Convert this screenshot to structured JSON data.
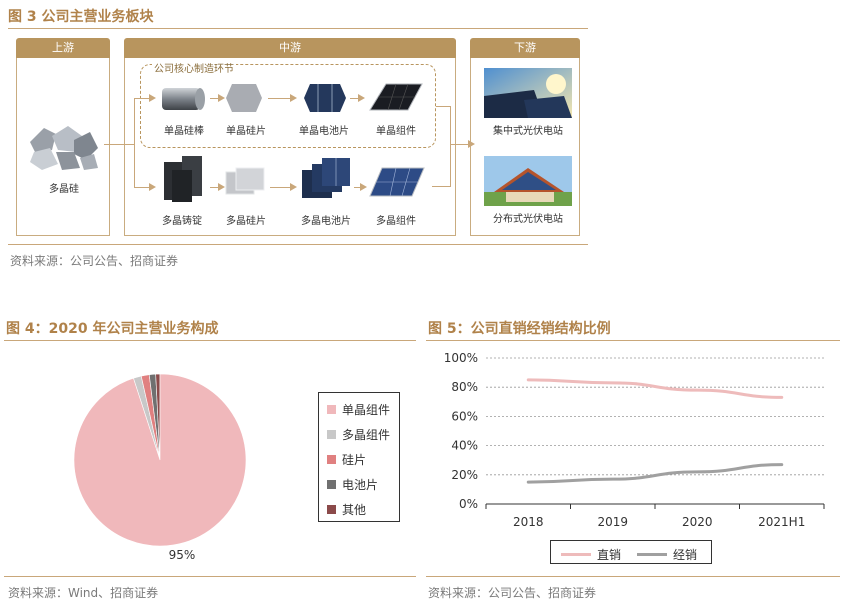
{
  "fig3": {
    "title": "图 3  公司主营业务板块",
    "upstream": "上游",
    "midstream": "中游",
    "downstream": "下游",
    "core_label": "公司核心制造环节",
    "raw": "多晶硅",
    "mono_steps": [
      "单晶硅棒",
      "单晶硅片",
      "单晶电池片",
      "单晶组件"
    ],
    "multi_steps": [
      "多晶铸锭",
      "多晶硅片",
      "多晶电池片",
      "多晶组件"
    ],
    "down_items": [
      "集中式光伏电站",
      "分布式光伏电站"
    ],
    "source": "资料来源：公司公告、招商证券"
  },
  "fig4": {
    "title": "图 4：2020 年公司主营业务构成",
    "source": "资料来源：Wind、招商证券"
  },
  "fig5": {
    "title": "图 5：公司直销经销结构比例",
    "source": "资料来源：公司公告、招商证券"
  },
  "chart_data": [
    {
      "type": "pie",
      "title": "2020 年公司主营业务构成",
      "categories": [
        "单晶组件",
        "多晶组件",
        "硅片",
        "电池片",
        "其他"
      ],
      "values": [
        95,
        1.5,
        1.5,
        1.2,
        0.8
      ],
      "colors": [
        "#f0b8bb",
        "#c8c8c8",
        "#e08080",
        "#707070",
        "#8b4a4a"
      ],
      "data_labels": [
        "95%"
      ],
      "legend_position": "right"
    },
    {
      "type": "line",
      "title": "公司直销经销结构比例",
      "categories": [
        "2018",
        "2019",
        "2020",
        "2021H1"
      ],
      "series": [
        {
          "name": "直销",
          "values": [
            85,
            83,
            78,
            73
          ],
          "color": "#eebbbb"
        },
        {
          "name": "经销",
          "values": [
            15,
            17,
            22,
            27
          ],
          "color": "#a0a0a0"
        }
      ],
      "y_ticks": [
        "0%",
        "20%",
        "40%",
        "60%",
        "80%",
        "100%"
      ],
      "ylim": [
        0,
        100
      ],
      "grid": true,
      "legend_position": "bottom"
    }
  ]
}
